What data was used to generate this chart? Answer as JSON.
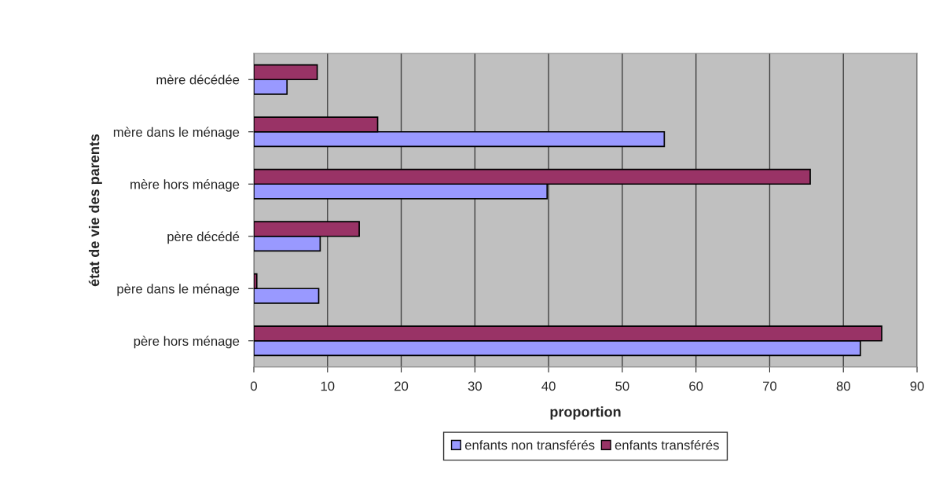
{
  "chart_data": {
    "type": "bar",
    "orientation": "horizontal",
    "xlabel": "proportion",
    "ylabel": "état de vie des parents",
    "categories": [
      "mère décédée",
      "mère dans le ménage",
      "mère hors ménage",
      "père décédé",
      "père dans le ménage",
      "père hors ménage"
    ],
    "series": [
      {
        "name": "enfants non transférés",
        "color": "#9999ff",
        "values": [
          4.5,
          55.7,
          39.8,
          9.0,
          8.8,
          82.3
        ]
      },
      {
        "name": "enfants transférés",
        "color": "#993366",
        "values": [
          8.6,
          16.8,
          75.5,
          14.3,
          0.4,
          85.2
        ]
      }
    ],
    "xlim": [
      0,
      90
    ],
    "xticks": [
      0,
      10,
      20,
      30,
      40,
      50,
      60,
      70,
      80,
      90
    ],
    "grid": "x",
    "legend": "bottom"
  }
}
